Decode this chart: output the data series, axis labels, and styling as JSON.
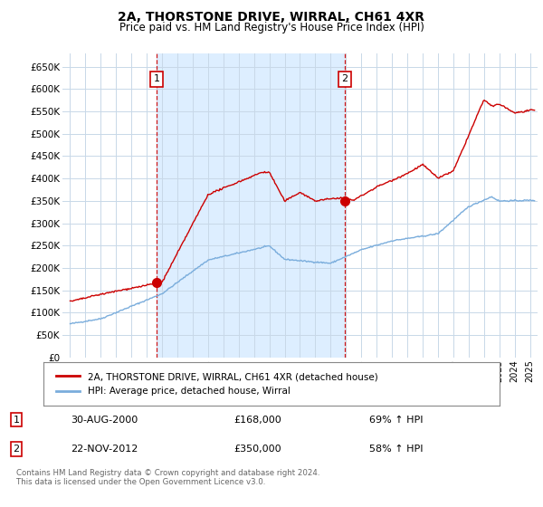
{
  "title": "2A, THORSTONE DRIVE, WIRRAL, CH61 4XR",
  "subtitle": "Price paid vs. HM Land Registry's House Price Index (HPI)",
  "ylabel_ticks": [
    "£0",
    "£50K",
    "£100K",
    "£150K",
    "£200K",
    "£250K",
    "£300K",
    "£350K",
    "£400K",
    "£450K",
    "£500K",
    "£550K",
    "£600K",
    "£650K"
  ],
  "ytick_values": [
    0,
    50000,
    100000,
    150000,
    200000,
    250000,
    300000,
    350000,
    400000,
    450000,
    500000,
    550000,
    600000,
    650000
  ],
  "ylim": [
    0,
    680000
  ],
  "xlim_start": 1994.5,
  "xlim_end": 2025.5,
  "transaction1_date": 2000.66,
  "transaction1_price": 168000,
  "transaction1_label": "1",
  "transaction2_date": 2012.9,
  "transaction2_price": 350000,
  "transaction2_label": "2",
  "vline1_x": 2000.66,
  "vline2_x": 2012.9,
  "hpi_color": "#7aaddc",
  "price_color": "#cc0000",
  "vline_color": "#cc0000",
  "grid_color": "#c8d8e8",
  "shade_color": "#ddeeff",
  "background_color": "#ffffff",
  "plot_bg_color": "#ffffff",
  "legend_label_price": "2A, THORSTONE DRIVE, WIRRAL, CH61 4XR (detached house)",
  "legend_label_hpi": "HPI: Average price, detached house, Wirral",
  "annotation1_date": "30-AUG-2000",
  "annotation1_price": "£168,000",
  "annotation1_pct": "69% ↑ HPI",
  "annotation2_date": "22-NOV-2012",
  "annotation2_price": "£350,000",
  "annotation2_pct": "58% ↑ HPI",
  "footer": "Contains HM Land Registry data © Crown copyright and database right 2024.\nThis data is licensed under the Open Government Licence v3.0."
}
